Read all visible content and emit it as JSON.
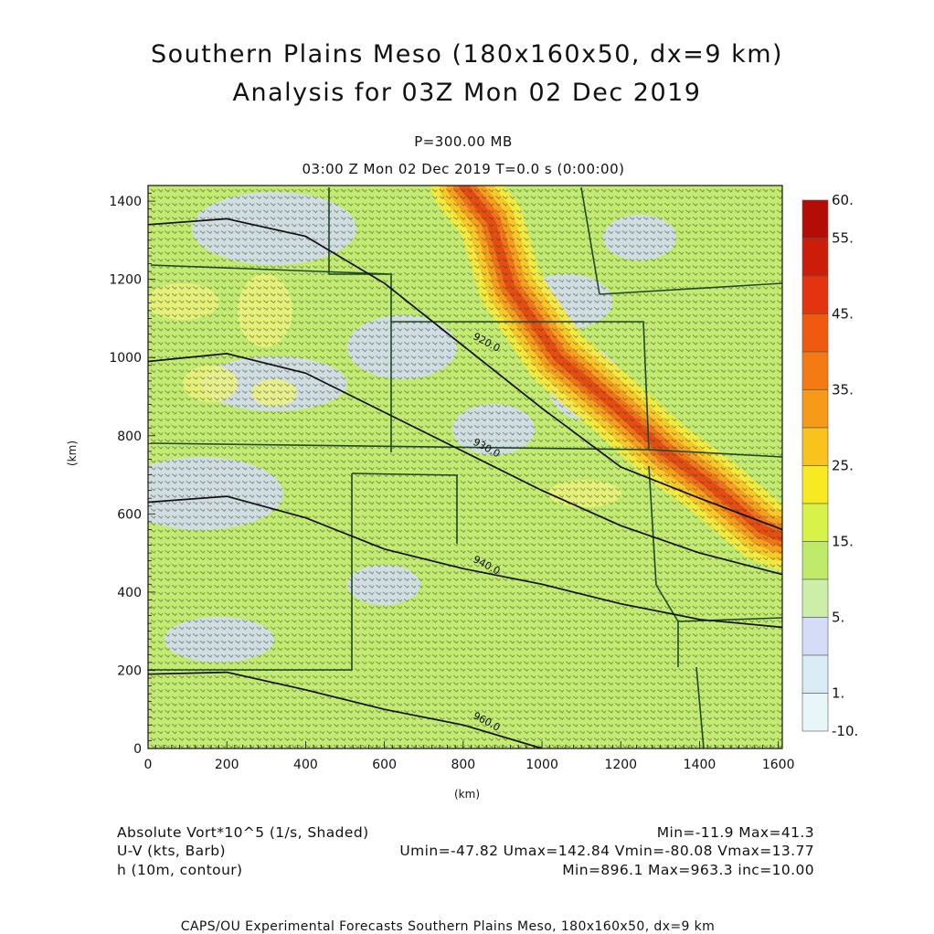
{
  "title": {
    "line1": "Southern Plains Meso (180x160x50, dx=9 km)",
    "line2": "Analysis for 03Z Mon 02 Dec 2019"
  },
  "subtitle": {
    "level": "P=300.00 MB",
    "time": "03:00 Z Mon 02 Dec 2019    T=0.0 s (0:00:00)"
  },
  "axes": {
    "xlabel": "(km)",
    "ylabel": "(km)"
  },
  "footer": {
    "left1": "Absolute Vort*10^5 (1/s, Shaded)",
    "left2": "U-V (kts, Barb)",
    "left3": "h (10m, contour)",
    "right1": "Min=-11.9 Max=41.3",
    "right2": "Umin=-47.82 Umax=142.84 Vmin=-80.08 Vmax=13.77",
    "right3": "Min=896.1 Max=963.3 inc=10.00"
  },
  "credit": "CAPS/OU Experimental Forecasts  Southern Plains Meso, 180x160x50, dx=9 km",
  "chart_data": {
    "type": "heatmap",
    "xlim": [
      0,
      1610
    ],
    "ylim": [
      0,
      1440
    ],
    "x_ticks": [
      0,
      200,
      400,
      600,
      800,
      1000,
      1200,
      1400,
      1600
    ],
    "y_ticks": [
      0,
      200,
      400,
      600,
      800,
      1000,
      1200,
      1400
    ],
    "x_tick_labels": [
      "0",
      "200",
      "400",
      "600",
      "800",
      "1000",
      "1200",
      "1400",
      "1600"
    ],
    "y_tick_labels": [
      "0",
      "200",
      "400",
      "600",
      "800",
      "1000",
      "1200",
      "1400"
    ],
    "colorbar": {
      "labels": [
        "60.",
        "55.",
        "45.",
        "35.",
        "25.",
        "15.",
        "5.",
        "1.",
        "-10."
      ],
      "colors": [
        "#b40d07",
        "#cc1d0a",
        "#e4340f",
        "#f05a10",
        "#f47a14",
        "#f79a1a",
        "#f9c31e",
        "#f7ea22",
        "#d8f24a",
        "#c0eb6a",
        "#cdeea8",
        "#d5dcf8",
        "#d9ecf6",
        "#e8f6fa"
      ]
    },
    "height_contours": [
      {
        "label": "920.0",
        "points": [
          [
            0,
            1340
          ],
          [
            200,
            1355
          ],
          [
            400,
            1310
          ],
          [
            600,
            1190
          ],
          [
            800,
            1030
          ],
          [
            1000,
            870
          ],
          [
            1200,
            720
          ],
          [
            1400,
            640
          ],
          [
            1610,
            560
          ]
        ]
      },
      {
        "label": "930.0",
        "points": [
          [
            0,
            990
          ],
          [
            200,
            1010
          ],
          [
            400,
            960
          ],
          [
            600,
            860
          ],
          [
            800,
            760
          ],
          [
            1000,
            660
          ],
          [
            1200,
            570
          ],
          [
            1400,
            500
          ],
          [
            1610,
            445
          ]
        ]
      },
      {
        "label": "940.0",
        "points": [
          [
            0,
            630
          ],
          [
            200,
            645
          ],
          [
            400,
            590
          ],
          [
            600,
            510
          ],
          [
            800,
            460
          ],
          [
            1000,
            420
          ],
          [
            1200,
            370
          ],
          [
            1400,
            330
          ],
          [
            1610,
            310
          ]
        ]
      },
      {
        "label": "960.0",
        "points": [
          [
            0,
            190
          ],
          [
            200,
            195
          ],
          [
            400,
            150
          ],
          [
            600,
            100
          ],
          [
            800,
            60
          ],
          [
            1000,
            0
          ]
        ]
      }
    ],
    "max_band": [
      [
        800,
        1440
      ],
      [
        870,
        1350
      ],
      [
        920,
        1180
      ],
      [
        1040,
        1000
      ],
      [
        1180,
        880
      ],
      [
        1310,
        760
      ],
      [
        1420,
        680
      ],
      [
        1560,
        560
      ],
      [
        1610,
        540
      ]
    ]
  }
}
